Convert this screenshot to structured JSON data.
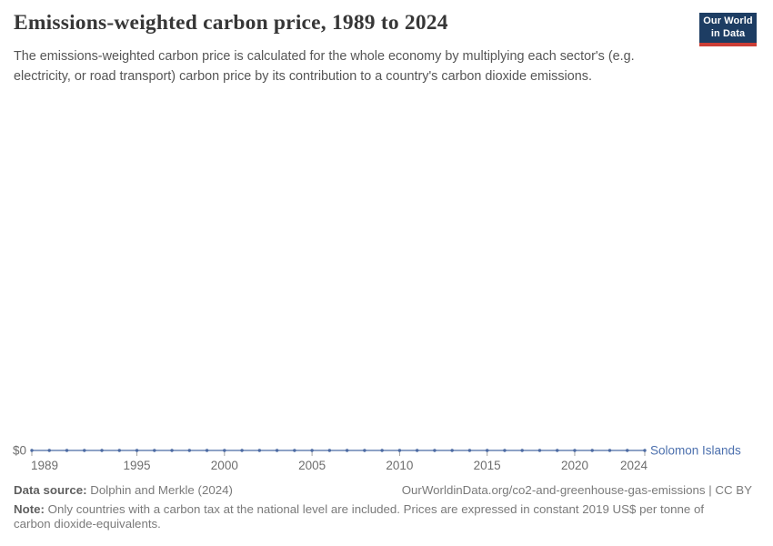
{
  "header": {
    "title": "Emissions-weighted carbon price, 1989 to 2024",
    "subtitle": "The emissions-weighted carbon price is calculated for the whole economy by multiplying each sector's (e.g. electricity, or road transport) carbon price by its contribution to a country's carbon dioxide emissions.",
    "logo": {
      "line1": "Our World",
      "line2": "in Data"
    }
  },
  "chart_data": {
    "type": "line",
    "title": "Emissions-weighted carbon price, 1989 to 2024",
    "xlim": [
      1989,
      2024
    ],
    "ylim": [
      0,
      0
    ],
    "grid": false,
    "legend": "end-of-line-label",
    "y_axis_label": "$0",
    "x_ticks": [
      1989,
      1995,
      2000,
      2005,
      2010,
      2015,
      2020,
      2024
    ],
    "series": [
      {
        "name": "Solomon Islands",
        "x": [
          1989,
          1990,
          1991,
          1992,
          1993,
          1994,
          1995,
          1996,
          1997,
          1998,
          1999,
          2000,
          2001,
          2002,
          2003,
          2004,
          2005,
          2006,
          2007,
          2008,
          2009,
          2010,
          2011,
          2012,
          2013,
          2014,
          2015,
          2016,
          2017,
          2018,
          2019,
          2020,
          2021,
          2022,
          2023,
          2024
        ],
        "values": [
          0,
          0,
          0,
          0,
          0,
          0,
          0,
          0,
          0,
          0,
          0,
          0,
          0,
          0,
          0,
          0,
          0,
          0,
          0,
          0,
          0,
          0,
          0,
          0,
          0,
          0,
          0,
          0,
          0,
          0,
          0,
          0,
          0,
          0,
          0,
          0
        ]
      }
    ]
  },
  "colors": {
    "line": "#6884b4",
    "dot": "#4d6ba3",
    "series_label": "#4c70ae",
    "axis_text": "#6e6e6e",
    "tick": "#a3a3a3",
    "logo_bg": "#1d3d63",
    "logo_accent": "#cc3e36"
  },
  "footer": {
    "data_source_label": "Data source:",
    "data_source_value": " Dolphin and Merkle (2024)",
    "attribution": "OurWorldinData.org/co2-and-greenhouse-gas-emissions | CC BY",
    "note_label": "Note:",
    "note_text": " Only countries with a carbon tax at the national level are included. Prices are expressed in constant 2019 US$ per tonne of carbon dioxide-equivalents."
  }
}
